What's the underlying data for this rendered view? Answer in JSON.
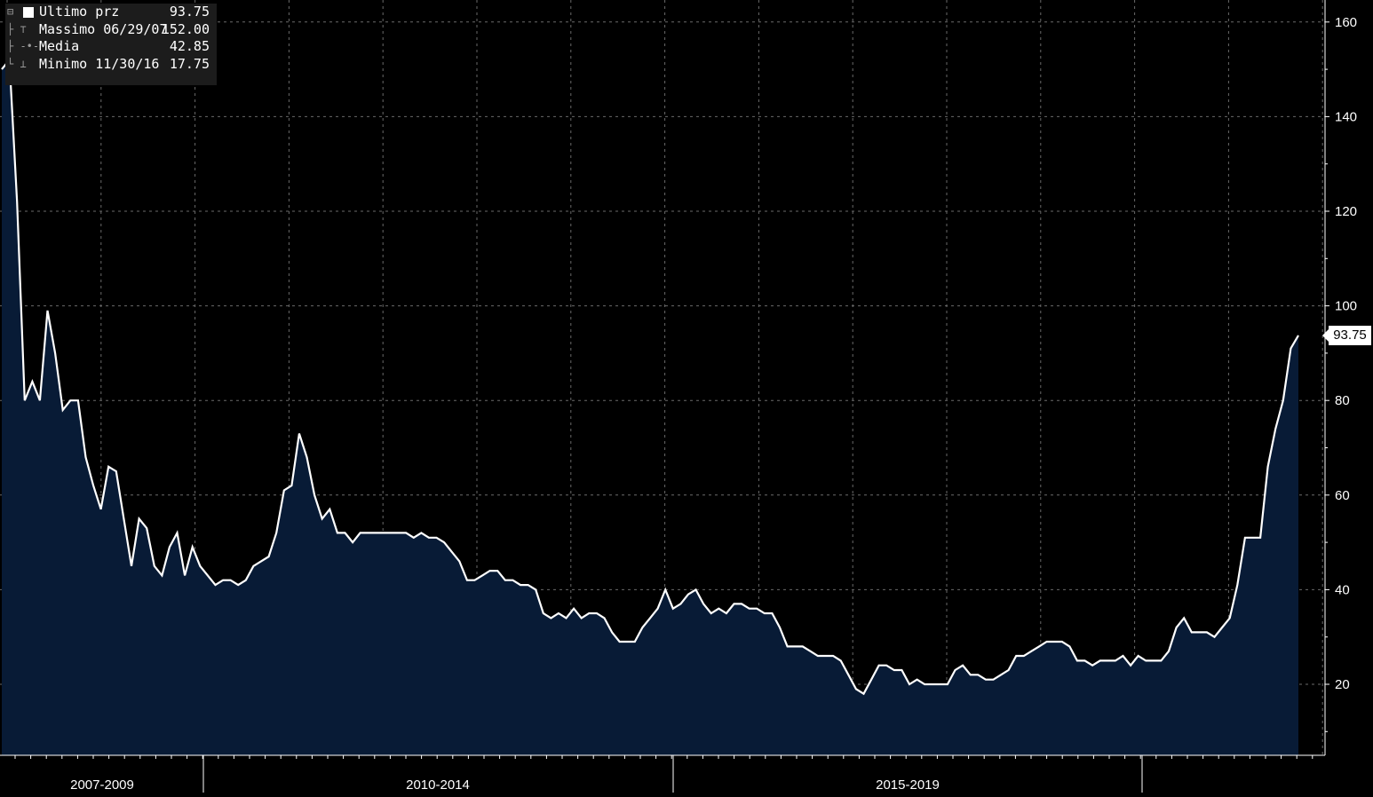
{
  "legend": {
    "last": {
      "name": "Ultimo prz",
      "value": "93.75"
    },
    "high": {
      "name": "Massimo 06/29/07",
      "value": "152.00"
    },
    "mean": {
      "name": "Media",
      "value": "42.85"
    },
    "low": {
      "name": "Minimo 11/30/16",
      "value": "17.75"
    }
  },
  "last_tag": "93.75",
  "colors": {
    "background": "#000000",
    "area_fill": "#081b36",
    "line": "#ffffff",
    "grid": "#6a6a6a",
    "axis": "#ffffff"
  },
  "chart_data": {
    "type": "area",
    "ylim": [
      0,
      162
    ],
    "yticks": [
      20,
      40,
      60,
      80,
      100,
      120,
      140,
      160
    ],
    "grid": true,
    "period_labels": [
      "2007-2009",
      "2010-2014",
      "2015-2019"
    ],
    "last_value": 93.75,
    "series": [
      {
        "values": [
          150,
          152,
          122,
          80,
          84,
          80,
          99,
          90,
          78,
          80,
          80,
          68,
          62,
          57,
          66,
          65,
          55,
          45,
          55,
          53,
          45,
          43,
          49,
          52,
          43,
          49,
          45,
          43,
          41,
          42,
          42,
          41,
          42,
          45,
          46,
          47,
          52,
          61,
          62,
          73,
          68,
          60,
          55,
          57,
          52,
          52,
          50,
          52,
          52,
          52,
          52,
          52,
          52,
          52,
          51,
          52,
          51,
          51,
          50,
          48,
          46,
          42,
          42,
          43,
          44,
          44,
          42,
          42,
          41,
          41,
          40,
          35,
          34,
          35,
          34,
          36,
          34,
          35,
          35,
          34,
          31,
          29,
          29,
          29,
          32,
          34,
          36,
          40,
          36,
          37,
          39,
          40,
          37,
          35,
          36,
          35,
          37,
          37,
          36,
          36,
          35,
          35,
          32,
          28,
          28,
          28,
          27,
          26,
          26,
          26,
          25,
          22,
          19,
          18,
          21,
          24,
          24,
          23,
          23,
          20,
          21,
          20,
          20,
          20,
          20,
          23,
          24,
          22,
          22,
          21,
          21,
          22,
          23,
          26,
          26,
          27,
          28,
          29,
          29,
          29,
          28,
          25,
          25,
          24,
          25,
          25,
          25,
          26,
          24,
          26,
          25,
          25,
          25,
          27,
          32,
          34,
          31,
          31,
          31,
          30,
          32,
          34,
          41,
          51,
          51,
          51,
          66,
          74,
          80,
          91,
          93.75
        ]
      }
    ]
  }
}
